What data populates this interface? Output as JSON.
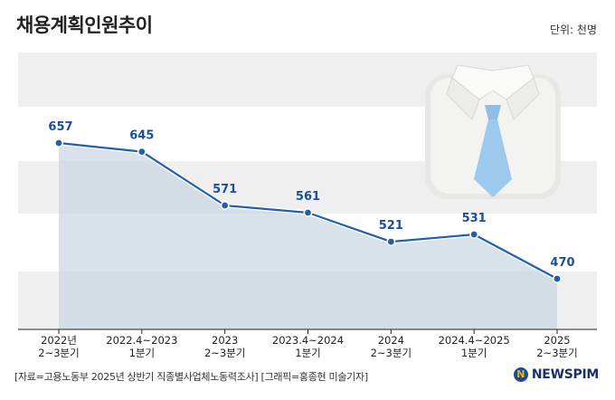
{
  "unit_label": "단위: 천명",
  "source_note": "[자료=고용노동부 2025년 상반기 직종별사업체노동력조사] [그래픽=홍종현 미술기자]",
  "brand": "NEWSPIM",
  "colors": {
    "line": "#1f5fac",
    "area": "#c9d4e3",
    "band": "#efefef",
    "brand": "#1a2f6b"
  },
  "chart_data": {
    "type": "area",
    "title": "채용계획인원추이",
    "xlabel": "",
    "ylabel": "",
    "categories": [
      [
        "2022년",
        "2~3분기"
      ],
      [
        "2022.4~2023",
        "1분기"
      ],
      [
        "2023",
        "2~3분기"
      ],
      [
        "2023.4~2024",
        "1분기"
      ],
      [
        "2024",
        "2~3분기"
      ],
      [
        "2024.4~2025",
        "1분기"
      ],
      [
        "2025",
        "2~3분기"
      ]
    ],
    "values": [
      657,
      645,
      571,
      561,
      521,
      531,
      470
    ],
    "grid": true,
    "legend": "none"
  }
}
